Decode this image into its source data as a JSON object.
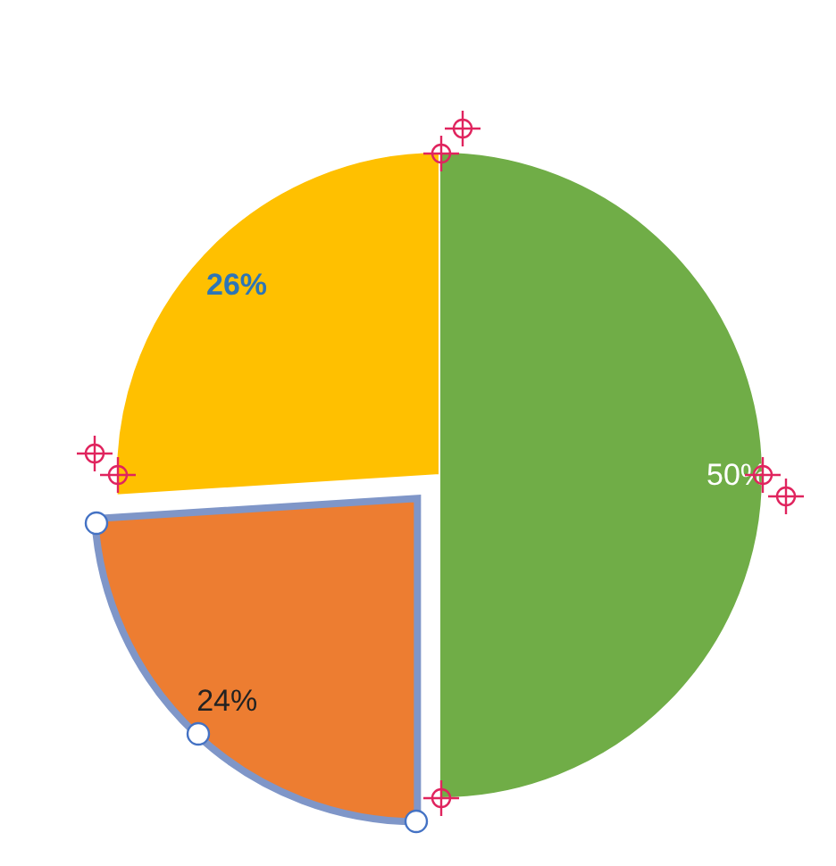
{
  "chart_data": {
    "type": "pie",
    "categories": [
      null,
      null,
      null
    ],
    "values": [
      50,
      24,
      26
    ],
    "colors": [
      "#70ad47",
      "#ed7d31",
      "#ffc000"
    ],
    "value_labels": [
      "50%",
      "24%",
      "26%"
    ]
  }
}
